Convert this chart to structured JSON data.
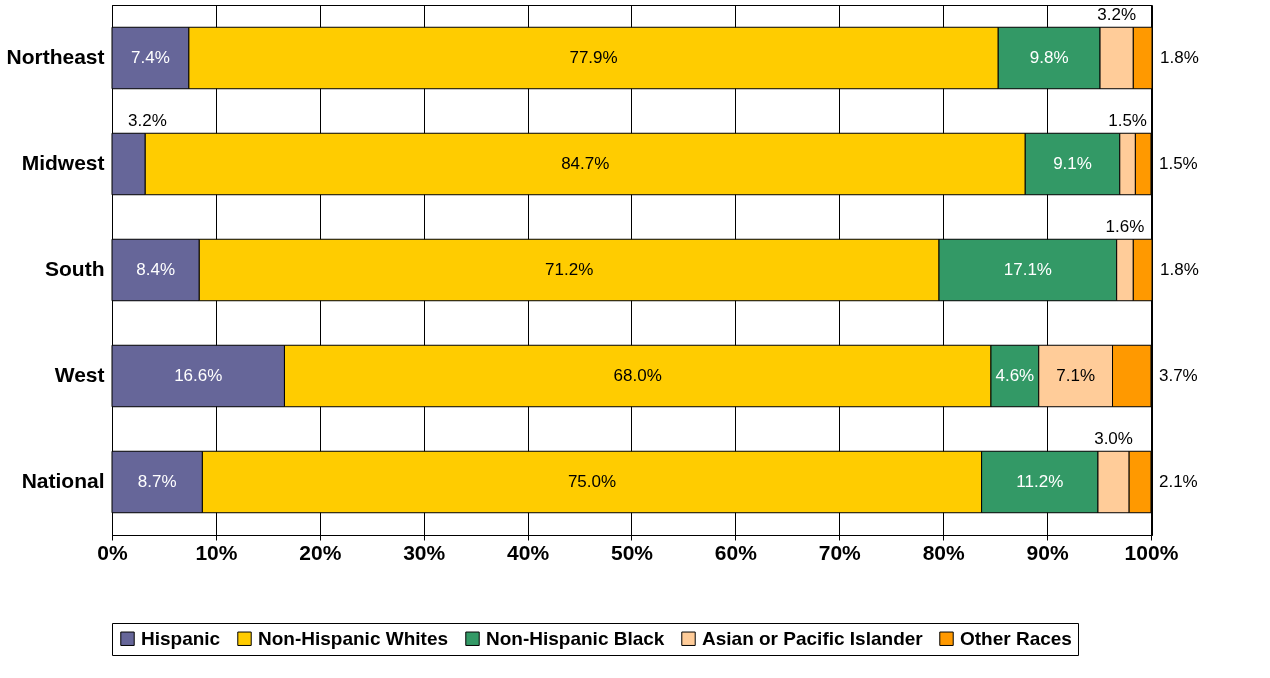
{
  "chart_data": {
    "type": "bar",
    "orientation": "horizontal",
    "stacked": true,
    "categories": [
      "Northeast",
      "Midwest",
      "South",
      "West",
      "National"
    ],
    "series": [
      {
        "name": "Hispanic",
        "color": "#666699",
        "values": [
          7.4,
          3.2,
          8.4,
          16.6,
          8.7
        ],
        "value_labels": [
          "7.4%",
          "3.2%",
          "8.4%",
          "16.6%",
          "8.7%"
        ]
      },
      {
        "name": "Non-Hispanic Whites",
        "color": "#ffcc00",
        "values": [
          77.9,
          84.7,
          71.2,
          68.0,
          75.0
        ],
        "value_labels": [
          "77.9%",
          "84.7%",
          "71.2%",
          "68.0%",
          "75.0%"
        ]
      },
      {
        "name": "Non-Hispanic Black",
        "color": "#339966",
        "values": [
          9.8,
          9.1,
          17.1,
          4.6,
          11.2
        ],
        "value_labels": [
          "9.8%",
          "9.1%",
          "17.1%",
          "4.6%",
          "11.2%"
        ]
      },
      {
        "name": "Asian or Pacific Islander",
        "color": "#ffcc99",
        "values": [
          3.2,
          1.5,
          1.6,
          7.1,
          3.0
        ],
        "value_labels": [
          "3.2%",
          "1.5%",
          "1.6%",
          "7.1%",
          "3.0%"
        ]
      },
      {
        "name": "Other Races",
        "color": "#ff9900",
        "values": [
          1.8,
          1.5,
          1.8,
          3.7,
          2.1
        ],
        "value_labels": [
          "1.8%",
          "1.5%",
          "1.8%",
          "3.7%",
          "2.1%"
        ]
      }
    ],
    "xlim": [
      0,
      100.1
    ],
    "xticks": [
      {
        "value": 0,
        "label": "0%"
      },
      {
        "value": 10,
        "label": "10%"
      },
      {
        "value": 20,
        "label": "20%"
      },
      {
        "value": 30,
        "label": "30%"
      },
      {
        "value": 40,
        "label": "40%"
      },
      {
        "value": 50,
        "label": "50%"
      },
      {
        "value": 60,
        "label": "60%"
      },
      {
        "value": 70,
        "label": "70%"
      },
      {
        "value": 80,
        "label": "80%"
      },
      {
        "value": 90,
        "label": "90%"
      },
      {
        "value": 100,
        "label": "100%"
      }
    ],
    "grid": "x",
    "legend": "bottom"
  }
}
